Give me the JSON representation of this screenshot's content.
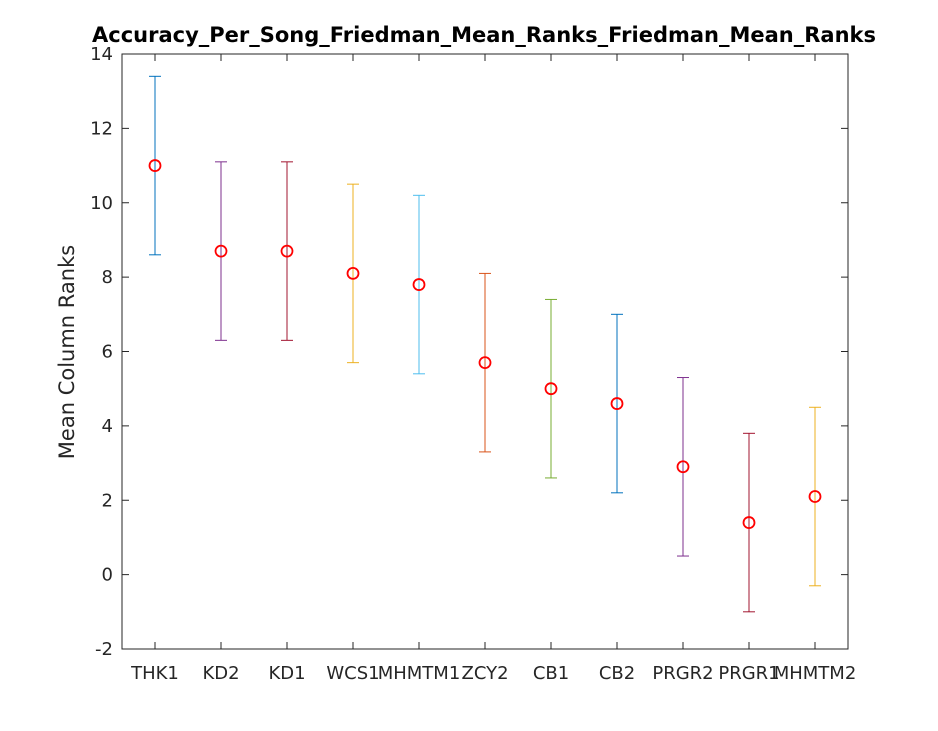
{
  "chart_data": {
    "type": "errorbar",
    "title": "Accuracy_Per_Song_Friedman_Mean_Ranks_Friedman_Mean_Ranks",
    "xlabel": "",
    "ylabel": "Mean Column Ranks",
    "categories": [
      "THK1",
      "KD2",
      "KD1",
      "WCS1",
      "MHMTM1",
      "ZCY2",
      "CB1",
      "CB2",
      "PRGR2",
      "PRGR1",
      "MHMTM2"
    ],
    "means": [
      11.0,
      8.7,
      8.7,
      8.1,
      7.8,
      5.7,
      5.0,
      4.6,
      2.9,
      1.4,
      2.1
    ],
    "lower": [
      8.6,
      6.3,
      6.3,
      5.7,
      5.4,
      3.3,
      2.6,
      2.2,
      0.5,
      -1.0,
      -0.3
    ],
    "upper": [
      13.4,
      11.1,
      11.1,
      10.5,
      10.2,
      8.1,
      7.4,
      7.0,
      5.3,
      3.8,
      4.5
    ],
    "bar_colors": [
      "#0072bd",
      "#7e2f8e",
      "#a2142f",
      "#edb120",
      "#4dbeee",
      "#d95319",
      "#77ac30",
      "#0072bd",
      "#7e2f8e",
      "#a2142f",
      "#edb120"
    ],
    "mean_marker": "circle",
    "mean_marker_color": "#ff0000",
    "ylim": [
      -2,
      14
    ],
    "yticks": [
      -2,
      0,
      2,
      4,
      6,
      8,
      10,
      12,
      14
    ],
    "grid": false
  }
}
